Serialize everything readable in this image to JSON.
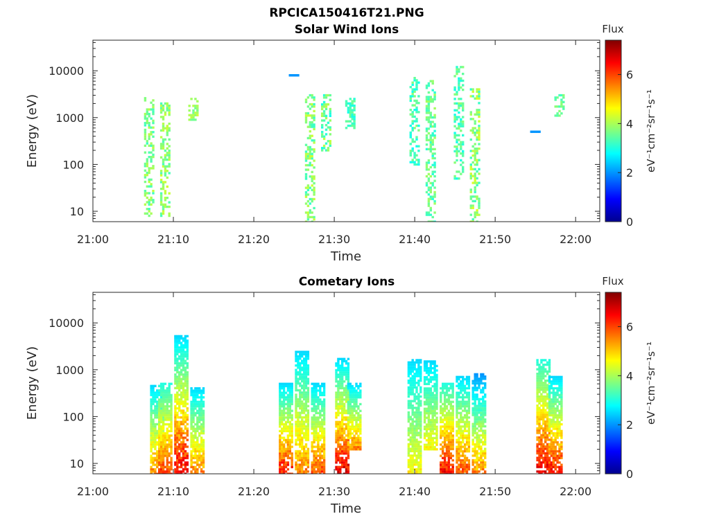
{
  "figure_title": "RPCICA150416T21.PNG",
  "colormap": [
    "#00008f",
    "#0000ff",
    "#0080ff",
    "#00ffff",
    "#80ff80",
    "#ffff00",
    "#ff8000",
    "#ff0000",
    "#800000"
  ],
  "chart_data": [
    {
      "type": "heatmap",
      "title": "Solar Wind Ions",
      "xlabel": "Time",
      "ylabel": "Energy (eV)",
      "yscale": "log",
      "xlim": [
        "21:00",
        "22:03"
      ],
      "ylim": [
        6,
        45000
      ],
      "x_ticks": [
        "21:00",
        "21:10",
        "21:20",
        "21:30",
        "21:40",
        "21:50",
        "22:00"
      ],
      "y_ticks": [
        "10",
        "100",
        "1000",
        "10000"
      ],
      "colorbar": {
        "label": "Flux",
        "units": "eV⁻¹cm⁻²sr⁻¹s⁻¹",
        "range": [
          0,
          7.4
        ],
        "ticks": [
          "0",
          "2",
          "4",
          "6"
        ]
      },
      "bursts": [
        {
          "time": "21:07",
          "e_min": 8,
          "e_max": 2600,
          "flux": [
            2.2,
            4.2
          ]
        },
        {
          "time": "21:09",
          "e_min": 8,
          "e_max": 2000,
          "flux": [
            2.3,
            4.3
          ]
        },
        {
          "time": "21:12.5",
          "e_min": 900,
          "e_max": 2500,
          "flux": [
            2.8,
            4.3
          ]
        },
        {
          "time": "21:25",
          "e_min": 8000,
          "e_max": 8000,
          "flux": [
            2.0,
            2.0
          ]
        },
        {
          "time": "21:27",
          "e_min": 6,
          "e_max": 3000,
          "flux": [
            2.0,
            4.3
          ]
        },
        {
          "time": "21:29",
          "e_min": 200,
          "e_max": 3000,
          "flux": [
            1.6,
            4.2
          ]
        },
        {
          "time": "21:32",
          "e_min": 600,
          "e_max": 2500,
          "flux": [
            2.2,
            3.6
          ]
        },
        {
          "time": "21:40",
          "e_min": 100,
          "e_max": 7000,
          "flux": [
            1.8,
            3.8
          ]
        },
        {
          "time": "21:42",
          "e_min": 6,
          "e_max": 6000,
          "flux": [
            2.0,
            4.0
          ]
        },
        {
          "time": "21:45.5",
          "e_min": 50,
          "e_max": 12000,
          "flux": [
            1.8,
            3.8
          ]
        },
        {
          "time": "21:47.5",
          "e_min": 6,
          "e_max": 4000,
          "flux": [
            1.8,
            4.4
          ]
        },
        {
          "time": "21:55",
          "e_min": 500,
          "e_max": 500,
          "flux": [
            2.0,
            2.0
          ]
        },
        {
          "time": "21:58",
          "e_min": 1100,
          "e_max": 3000,
          "flux": [
            2.6,
            3.8
          ]
        }
      ]
    },
    {
      "type": "heatmap",
      "title": "Cometary Ions",
      "xlabel": "Time",
      "ylabel": "Energy (eV)",
      "yscale": "log",
      "xlim": [
        "21:00",
        "22:03"
      ],
      "ylim": [
        6,
        45000
      ],
      "x_ticks": [
        "21:00",
        "21:10",
        "21:20",
        "21:30",
        "21:40",
        "21:50",
        "22:00"
      ],
      "y_ticks": [
        "10",
        "100",
        "1000",
        "10000"
      ],
      "colorbar": {
        "label": "Flux",
        "units": "eV⁻¹cm⁻²sr⁻¹s⁻¹",
        "range": [
          0,
          7.4
        ],
        "ticks": [
          "0",
          "2",
          "4",
          "6"
        ]
      },
      "bursts": [
        {
          "time": "21:08",
          "e_min": 6,
          "e_max": 450,
          "flux": [
            2.5,
            6.0
          ]
        },
        {
          "time": "21:09",
          "e_min": 6,
          "e_max": 500,
          "flux": [
            3.0,
            6.5
          ]
        },
        {
          "time": "21:11",
          "e_min": 6,
          "e_max": 5200,
          "flux": [
            2.5,
            7.2
          ]
        },
        {
          "time": "21:13",
          "e_min": 6,
          "e_max": 400,
          "flux": [
            2.5,
            6.0
          ]
        },
        {
          "time": "21:24",
          "e_min": 6,
          "e_max": 500,
          "flux": [
            2.5,
            7.0
          ]
        },
        {
          "time": "21:26",
          "e_min": 6,
          "e_max": 2400,
          "flux": [
            2.5,
            6.0
          ]
        },
        {
          "time": "21:28",
          "e_min": 6,
          "e_max": 500,
          "flux": [
            2.5,
            6.5
          ]
        },
        {
          "time": "21:31",
          "e_min": 6,
          "e_max": 1700,
          "flux": [
            2.5,
            7.3
          ]
        },
        {
          "time": "21:32.5",
          "e_min": 20,
          "e_max": 500,
          "flux": [
            2.5,
            6.0
          ]
        },
        {
          "time": "21:40",
          "e_min": 6,
          "e_max": 1600,
          "flux": [
            2.5,
            5.0
          ]
        },
        {
          "time": "21:42",
          "e_min": 20,
          "e_max": 1500,
          "flux": [
            2.5,
            5.0
          ]
        },
        {
          "time": "21:44",
          "e_min": 6,
          "e_max": 500,
          "flux": [
            3.0,
            7.0
          ]
        },
        {
          "time": "21:46",
          "e_min": 6,
          "e_max": 700,
          "flux": [
            2.5,
            6.5
          ]
        },
        {
          "time": "21:48",
          "e_min": 6,
          "e_max": 800,
          "flux": [
            2.0,
            6.0
          ]
        },
        {
          "time": "21:56",
          "e_min": 6,
          "e_max": 1600,
          "flux": [
            3.0,
            7.2
          ]
        },
        {
          "time": "21:57.5",
          "e_min": 6,
          "e_max": 700,
          "flux": [
            2.5,
            7.0
          ]
        }
      ]
    }
  ]
}
